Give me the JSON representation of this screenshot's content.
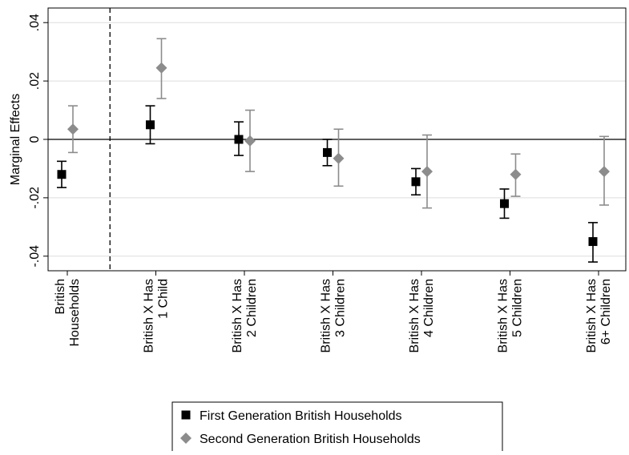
{
  "colors": {
    "first_generation": "#000000",
    "second_generation": "#8c8c8c",
    "gridline": "#dddddd",
    "axis": "#000000"
  },
  "chart_data": {
    "type": "scatter",
    "subtype": "coefficient-plot-with-confidence-intervals",
    "title": "",
    "xlabel": "",
    "ylabel": "Marginal Effects",
    "ylim": [
      -0.045,
      0.045
    ],
    "yticks": [
      -0.04,
      -0.02,
      0,
      0.02,
      0.04
    ],
    "ytick_labels": [
      "-.04",
      "-.02",
      "0",
      ".02",
      ".04"
    ],
    "grid": true,
    "zero_line": true,
    "separator_after_category": 0,
    "categories": [
      [
        "British",
        "Households"
      ],
      [
        "British X Has",
        "1 Child"
      ],
      [
        "British X Has",
        "2 Children"
      ],
      [
        "British X Has",
        "3 Children"
      ],
      [
        "British X Has",
        "4 Children"
      ],
      [
        "British X Has",
        "5 Children"
      ],
      [
        "British X Has",
        "6+ Children"
      ]
    ],
    "series": [
      {
        "name": "First Generation British Households",
        "marker": "square",
        "color": "#000000",
        "values": [
          -0.012,
          0.005,
          0.0,
          -0.0045,
          -0.0145,
          -0.022,
          -0.035
        ],
        "ci_low": [
          -0.0165,
          -0.0015,
          -0.0055,
          -0.009,
          -0.019,
          -0.027,
          -0.042
        ],
        "ci_high": [
          -0.0075,
          0.0115,
          0.006,
          0.0,
          -0.01,
          -0.017,
          -0.0285
        ]
      },
      {
        "name": "Second Generation British Households",
        "marker": "diamond",
        "color": "#8c8c8c",
        "values": [
          0.0035,
          0.0245,
          -0.0005,
          -0.0065,
          -0.011,
          -0.012,
          -0.011
        ],
        "ci_low": [
          -0.0045,
          0.014,
          -0.011,
          -0.016,
          -0.0235,
          -0.0195,
          -0.0225
        ],
        "ci_high": [
          0.0115,
          0.0345,
          0.01,
          0.0035,
          0.0015,
          -0.005,
          0.001
        ]
      }
    ],
    "legend": {
      "placement": "bottom-center"
    }
  }
}
